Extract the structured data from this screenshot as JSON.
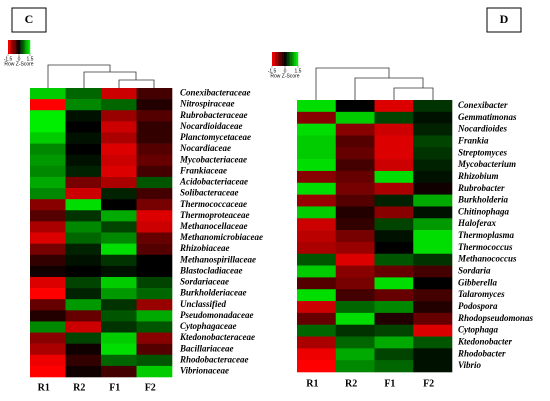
{
  "chart_data": [
    {
      "type": "heatmap",
      "panel": "C",
      "categories": [
        "R1",
        "R2",
        "F1",
        "F2"
      ],
      "rows": [
        "Conexibacteraceae",
        "Nitrospiraceae",
        "Rubrobacteraceae",
        "Nocardioidaceae",
        "Planctomycetaceae",
        "Nocardiaceae",
        "Mycobacteriaceae",
        "Frankiaceae",
        "Acidobacteriaceae",
        "Solibacteraceae",
        "Thermococcaceae",
        "Thermoproteaceae",
        "Methanocellaceae",
        "Methanomicrobiaceae",
        "Rhizobiaceae",
        "Methanospirillaceae",
        "Blastocladiaceae",
        "Sordariaceae",
        "Burkholderiaceae",
        "Unclassified",
        "Pseudomonadaceae",
        "Cytophagaceae",
        "Ktedonobacteraceae",
        "Bacillariaceae",
        "Rhodobacteraceae",
        "Vibrionaceae"
      ],
      "values": [
        [
          1.2,
          0.6,
          -1.2,
          -0.4
        ],
        [
          -1.5,
          0.8,
          0.6,
          -0.2
        ],
        [
          1.4,
          0.1,
          -0.9,
          -0.5
        ],
        [
          1.4,
          0,
          -1.2,
          -0.3
        ],
        [
          1.2,
          0.1,
          -1,
          -0.3
        ],
        [
          0.8,
          0,
          -1.3,
          -0.5
        ],
        [
          0.9,
          0.1,
          -1.2,
          -0.6
        ],
        [
          0.8,
          0.2,
          -1.3,
          -0.4
        ],
        [
          1,
          -0.7,
          -1,
          0.5
        ],
        [
          0.8,
          -1.2,
          0.2,
          -0.4
        ],
        [
          -0.8,
          1.3,
          0,
          -0.7
        ],
        [
          -0.5,
          0.3,
          1,
          -1.3
        ],
        [
          -1,
          0.8,
          0.4,
          -1.2
        ],
        [
          -1.3,
          0.6,
          0.8,
          -0.6
        ],
        [
          -0.7,
          0.2,
          1.3,
          -0.5
        ],
        [
          -0.3,
          0.1,
          0.3,
          0
        ],
        [
          -0.1,
          0,
          0.1,
          0
        ],
        [
          -1.3,
          0.4,
          1.2,
          0.4
        ],
        [
          -1.5,
          0.2,
          0.9,
          0.6
        ],
        [
          -0.6,
          0.9,
          0.3,
          -0.9
        ],
        [
          -0.2,
          -0.6,
          0.5,
          1
        ],
        [
          0.8,
          -1.2,
          0.3,
          0.5
        ],
        [
          -0.8,
          0.4,
          1.2,
          -0.8
        ],
        [
          -1,
          -0.1,
          1.3,
          -0.5
        ],
        [
          -1.4,
          -0.3,
          0.6,
          0.5
        ],
        [
          -1.5,
          -0.1,
          -0.4,
          1.2
        ]
      ],
      "colors": [
        "#ff0000",
        "#000000",
        "#00ff00"
      ],
      "zlim": [
        -1.5,
        1.5
      ],
      "zticks": [
        -1.5,
        0,
        1.5
      ],
      "colorbar_label": "Row Z-Score"
    },
    {
      "type": "heatmap",
      "panel": "D",
      "categories": [
        "R1",
        "R2",
        "F1",
        "F2"
      ],
      "rows": [
        "Conexibacter",
        "Gemmatimonas",
        "Nocardioides",
        "Frankia",
        "Streptomyces",
        "Mycobacterium",
        "Rhizobium",
        "Rubrobacter",
        "Burkholderia",
        "Chitinophaga",
        "Haloferax",
        "Thermoplasma",
        "Thermococcus",
        "Methanococcus",
        "Sordaria",
        "Gibberella",
        "Talaromyces",
        "Podospora",
        "Rhodopseudomonas",
        "Cytophaga",
        "Ktedonobacter",
        "Rhodobacter",
        "Vibrio"
      ],
      "values": [
        [
          1.3,
          0,
          -1.3,
          0.3
        ],
        [
          -0.8,
          1.2,
          0.4,
          0.1
        ],
        [
          1.3,
          -0.8,
          -1.2,
          0.2
        ],
        [
          1.2,
          -0.5,
          -1.3,
          0.4
        ],
        [
          1.2,
          -0.6,
          -1.3,
          0.3
        ],
        [
          1.3,
          -0.4,
          -1.2,
          0.2
        ],
        [
          -0.8,
          -0.6,
          1.3,
          0.1
        ],
        [
          1.3,
          -0.7,
          -1,
          -0.1
        ],
        [
          -0.9,
          -0.5,
          0.2,
          1
        ],
        [
          1.2,
          -0.2,
          -0.8,
          0.1
        ],
        [
          -1.2,
          -0.3,
          0.4,
          0.9
        ],
        [
          -1.1,
          -0.7,
          0.1,
          1.3
        ],
        [
          -1,
          -0.9,
          0,
          1.3
        ],
        [
          0.5,
          -1.3,
          0.5,
          0.3
        ],
        [
          1.2,
          -0.8,
          -0.6,
          -0.4
        ],
        [
          -0.5,
          -0.7,
          1.3,
          0
        ],
        [
          1.3,
          -0.4,
          -0.6,
          -0.4
        ],
        [
          -1.2,
          0.6,
          0.8,
          -0.2
        ],
        [
          -0.6,
          1.3,
          -0.2,
          -0.6
        ],
        [
          0.6,
          0.3,
          0.4,
          -1.3
        ],
        [
          -1,
          0.6,
          1,
          0.5
        ],
        [
          -1.4,
          1,
          0.4,
          0.1
        ],
        [
          -1.5,
          0.8,
          0.6,
          0.1
        ]
      ],
      "colors": [
        "#ff0000",
        "#000000",
        "#00ff00"
      ],
      "zlim": [
        -1.5,
        1.5
      ],
      "zticks": [
        -1.5,
        0,
        1.5
      ],
      "colorbar_label": "Row Z-Score"
    }
  ]
}
